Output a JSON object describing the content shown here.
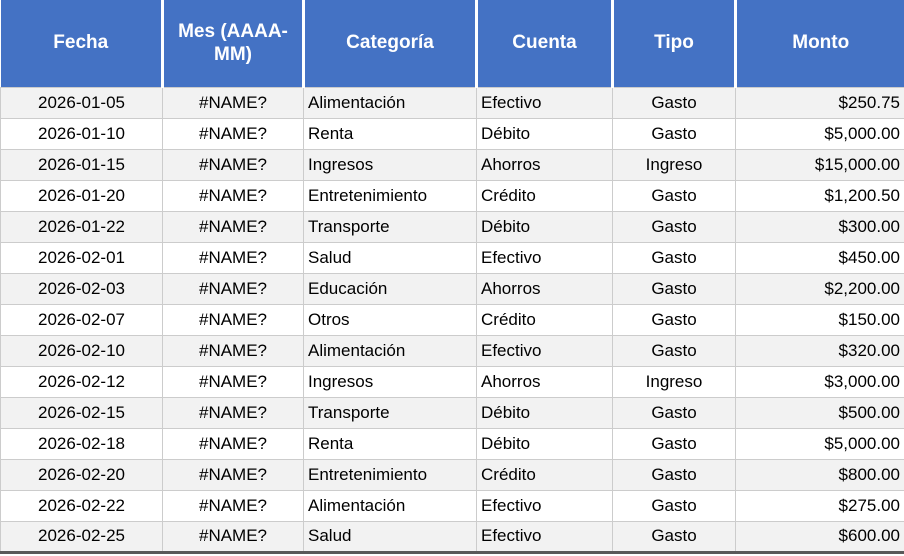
{
  "table": {
    "columns": [
      {
        "key": "fecha",
        "label": "Fecha",
        "align": "center",
        "width": 162
      },
      {
        "key": "mes",
        "label": "Mes (AAAA-MM)",
        "align": "center",
        "width": 141
      },
      {
        "key": "categoria",
        "label": "Categoría",
        "align": "left",
        "width": 173
      },
      {
        "key": "cuenta",
        "label": "Cuenta",
        "align": "left",
        "width": 136
      },
      {
        "key": "tipo",
        "label": "Tipo",
        "align": "center",
        "width": 123
      },
      {
        "key": "monto",
        "label": "Monto",
        "align": "right",
        "width": 169
      }
    ],
    "rows": [
      [
        "2026-01-05",
        "#NAME?",
        "Alimentación",
        "Efectivo",
        "Gasto",
        "$250.75"
      ],
      [
        "2026-01-10",
        "#NAME?",
        "Renta",
        "Débito",
        "Gasto",
        "$5,000.00"
      ],
      [
        "2026-01-15",
        "#NAME?",
        "Ingresos",
        "Ahorros",
        "Ingreso",
        "$15,000.00"
      ],
      [
        "2026-01-20",
        "#NAME?",
        "Entretenimiento",
        "Crédito",
        "Gasto",
        "$1,200.50"
      ],
      [
        "2026-01-22",
        "#NAME?",
        "Transporte",
        "Débito",
        "Gasto",
        "$300.00"
      ],
      [
        "2026-02-01",
        "#NAME?",
        "Salud",
        "Efectivo",
        "Gasto",
        "$450.00"
      ],
      [
        "2026-02-03",
        "#NAME?",
        "Educación",
        "Ahorros",
        "Gasto",
        "$2,200.00"
      ],
      [
        "2026-02-07",
        "#NAME?",
        "Otros",
        "Crédito",
        "Gasto",
        "$150.00"
      ],
      [
        "2026-02-10",
        "#NAME?",
        "Alimentación",
        "Efectivo",
        "Gasto",
        "$320.00"
      ],
      [
        "2026-02-12",
        "#NAME?",
        "Ingresos",
        "Ahorros",
        "Ingreso",
        "$3,000.00"
      ],
      [
        "2026-02-15",
        "#NAME?",
        "Transporte",
        "Débito",
        "Gasto",
        "$500.00"
      ],
      [
        "2026-02-18",
        "#NAME?",
        "Renta",
        "Débito",
        "Gasto",
        "$5,000.00"
      ],
      [
        "2026-02-20",
        "#NAME?",
        "Entretenimiento",
        "Crédito",
        "Gasto",
        "$800.00"
      ],
      [
        "2026-02-22",
        "#NAME?",
        "Alimentación",
        "Efectivo",
        "Gasto",
        "$275.00"
      ],
      [
        "2026-02-25",
        "#NAME?",
        "Salud",
        "Efectivo",
        "Gasto",
        "$600.00"
      ]
    ],
    "colors": {
      "header_bg": "#4472C4",
      "header_text": "#FFFFFF",
      "row_stripe": "#F2F2F2",
      "row_plain": "#FFFFFF",
      "grid_border": "#CCCCCC",
      "bottom_border": "#595959",
      "cell_text": "#000000"
    }
  }
}
